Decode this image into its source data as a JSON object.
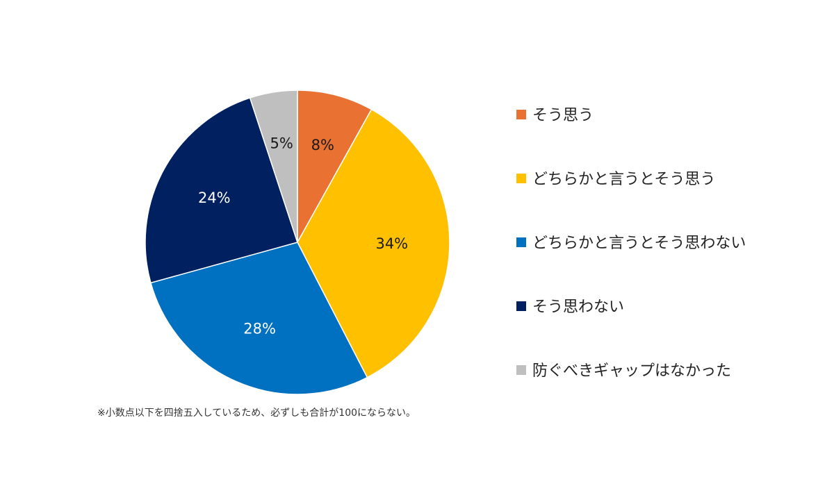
{
  "chart_data": {
    "type": "pie",
    "categories": [
      "そう思う",
      "どちらかと言うとそう思う",
      "どちらかと言うとそう思わない",
      "そう思わない",
      "防ぐべきギャップはなかった"
    ],
    "values": [
      8,
      34,
      28,
      24,
      5
    ],
    "labels": [
      "8%",
      "34%",
      "28%",
      "24%",
      "5%"
    ],
    "colors": [
      "#E97132",
      "#FFC000",
      "#0070C0",
      "#002060",
      "#BFBFBF"
    ],
    "label_colors": [
      "#1a1a1a",
      "#1a1a1a",
      "#ffffff",
      "#ffffff",
      "#1a1a1a"
    ],
    "legend_position": "right",
    "start": "top, clockwise"
  },
  "footnote": "※小数点以下を四捨五入しているため、必ずしも合計が100にならない。"
}
